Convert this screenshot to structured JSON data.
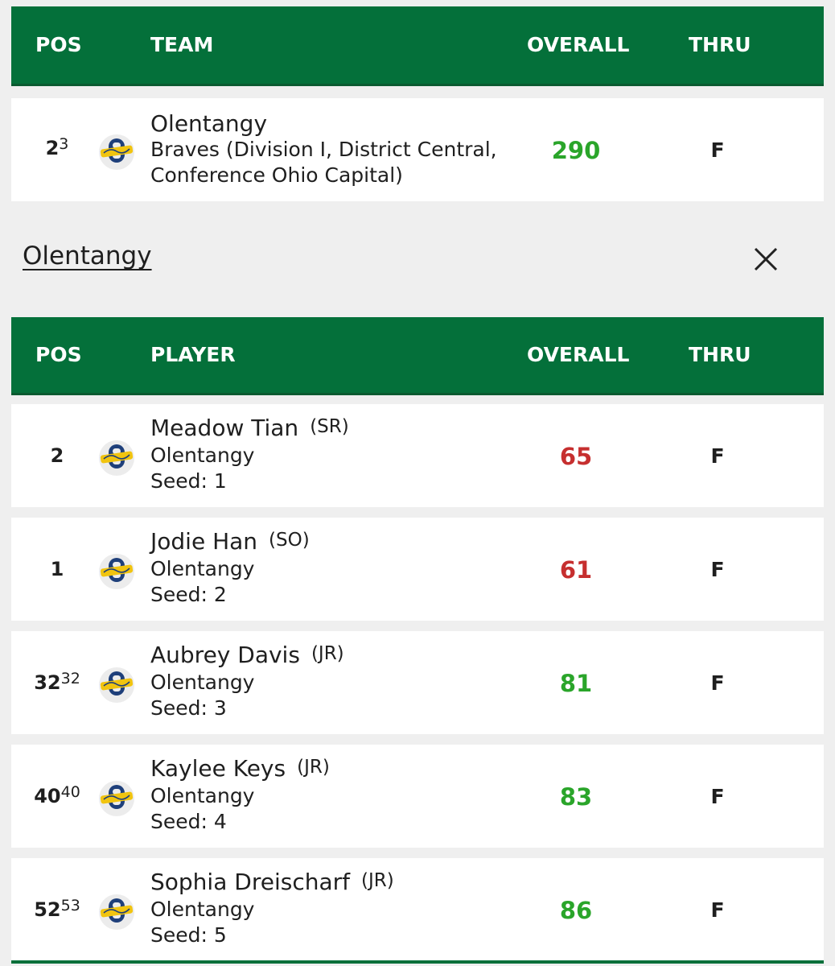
{
  "team_header": {
    "pos": "POS",
    "team": "TEAM",
    "overall": "OVERALL",
    "thru": "THRU"
  },
  "team_row": {
    "pos": "2",
    "pos_sup": "3",
    "logo_icon": "braves-logo-icon",
    "name": "Olentangy",
    "desc_line1": "Braves (Division I, District Central,",
    "desc_line2": "Conference Ohio Capital)",
    "score": "290",
    "score_color": "#2aa52a",
    "thru": "F"
  },
  "team_detail": {
    "title": "Olentangy",
    "close_icon": "close-icon"
  },
  "player_header": {
    "pos": "POS",
    "player": "PLAYER",
    "overall": "OVERALL",
    "thru": "THRU"
  },
  "players": [
    {
      "pos": "2",
      "pos_sup": "",
      "name": "Meadow Tian",
      "class": "(SR)",
      "school": "Olentangy",
      "seed": "Seed: 1",
      "score": "65",
      "score_color": "#c62f2f",
      "thru": "F"
    },
    {
      "pos": "1",
      "pos_sup": "",
      "name": "Jodie Han",
      "class": "(SO)",
      "school": "Olentangy",
      "seed": "Seed: 2",
      "score": "61",
      "score_color": "#c62f2f",
      "thru": "F"
    },
    {
      "pos": "32",
      "pos_sup": "32",
      "name": "Aubrey Davis",
      "class": "(JR)",
      "school": "Olentangy",
      "seed": "Seed: 3",
      "score": "81",
      "score_color": "#2aa52a",
      "thru": "F"
    },
    {
      "pos": "40",
      "pos_sup": "40",
      "name": "Kaylee Keys",
      "class": "(JR)",
      "school": "Olentangy",
      "seed": "Seed: 4",
      "score": "83",
      "score_color": "#2aa52a",
      "thru": "F"
    },
    {
      "pos": "52",
      "pos_sup": "53",
      "name": "Sophia Dreischarf",
      "class": "(JR)",
      "school": "Olentangy",
      "seed": "Seed: 5",
      "score": "86",
      "score_color": "#2aa52a",
      "thru": "F"
    }
  ],
  "colors": {
    "header_green": "#04703a",
    "logo_blue": "#1e3f7a",
    "logo_gold": "#f1c40f"
  }
}
